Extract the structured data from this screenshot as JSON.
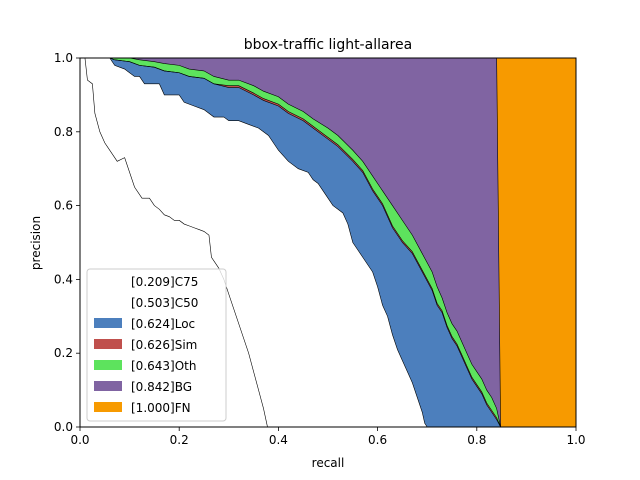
{
  "chart_data": {
    "type": "area",
    "title": "bbox-traffic light-allarea",
    "xlabel": "recall",
    "ylabel": "precision",
    "xlim": [
      0,
      1
    ],
    "ylim": [
      0,
      1
    ],
    "xticks": [
      "0.0",
      "0.2",
      "0.4",
      "0.6",
      "0.8",
      "1.0"
    ],
    "yticks": [
      "0.0",
      "0.2",
      "0.4",
      "0.6",
      "0.8",
      "1.0"
    ],
    "grid": false,
    "legend_position": "lower-left",
    "series": [
      {
        "name": "[0.209]C75",
        "color": "#ffffff",
        "points": [
          [
            0,
            1
          ],
          [
            0.01,
            1
          ],
          [
            0.015,
            0.94
          ],
          [
            0.025,
            0.93
          ],
          [
            0.03,
            0.85
          ],
          [
            0.04,
            0.8
          ],
          [
            0.05,
            0.77
          ],
          [
            0.055,
            0.76
          ],
          [
            0.065,
            0.74
          ],
          [
            0.075,
            0.72
          ],
          [
            0.09,
            0.73
          ],
          [
            0.1,
            0.69
          ],
          [
            0.11,
            0.65
          ],
          [
            0.125,
            0.62
          ],
          [
            0.14,
            0.62
          ],
          [
            0.15,
            0.6
          ],
          [
            0.16,
            0.59
          ],
          [
            0.17,
            0.575
          ],
          [
            0.18,
            0.57
          ],
          [
            0.19,
            0.56
          ],
          [
            0.2,
            0.56
          ],
          [
            0.21,
            0.55
          ],
          [
            0.22,
            0.545
          ],
          [
            0.23,
            0.54
          ],
          [
            0.24,
            0.535
          ],
          [
            0.25,
            0.53
          ],
          [
            0.26,
            0.52
          ],
          [
            0.265,
            0.46
          ],
          [
            0.27,
            0.45
          ],
          [
            0.28,
            0.43
          ],
          [
            0.29,
            0.4
          ],
          [
            0.3,
            0.36
          ],
          [
            0.31,
            0.32
          ],
          [
            0.32,
            0.28
          ],
          [
            0.33,
            0.24
          ],
          [
            0.34,
            0.2
          ],
          [
            0.35,
            0.15
          ],
          [
            0.36,
            0.1
          ],
          [
            0.37,
            0.05
          ],
          [
            0.378,
            0
          ]
        ]
      },
      {
        "name": "[0.503]C50",
        "color": "#ffffff",
        "points": [
          [
            0,
            1
          ],
          [
            0.02,
            1
          ],
          [
            0.06,
            1
          ],
          [
            0.07,
            0.98
          ],
          [
            0.09,
            0.97
          ],
          [
            0.11,
            0.95
          ],
          [
            0.12,
            0.95
          ],
          [
            0.13,
            0.93
          ],
          [
            0.16,
            0.93
          ],
          [
            0.17,
            0.9
          ],
          [
            0.2,
            0.9
          ],
          [
            0.21,
            0.88
          ],
          [
            0.23,
            0.87
          ],
          [
            0.25,
            0.86
          ],
          [
            0.27,
            0.84
          ],
          [
            0.29,
            0.84
          ],
          [
            0.3,
            0.83
          ],
          [
            0.32,
            0.83
          ],
          [
            0.34,
            0.82
          ],
          [
            0.36,
            0.81
          ],
          [
            0.38,
            0.79
          ],
          [
            0.4,
            0.75
          ],
          [
            0.42,
            0.72
          ],
          [
            0.44,
            0.7
          ],
          [
            0.46,
            0.69
          ],
          [
            0.47,
            0.67
          ],
          [
            0.48,
            0.66
          ],
          [
            0.49,
            0.64
          ],
          [
            0.5,
            0.62
          ],
          [
            0.51,
            0.6
          ],
          [
            0.52,
            0.59
          ],
          [
            0.53,
            0.58
          ],
          [
            0.54,
            0.55
          ],
          [
            0.55,
            0.5
          ],
          [
            0.56,
            0.48
          ],
          [
            0.57,
            0.46
          ],
          [
            0.58,
            0.44
          ],
          [
            0.59,
            0.42
          ],
          [
            0.6,
            0.38
          ],
          [
            0.61,
            0.33
          ],
          [
            0.62,
            0.3
          ],
          [
            0.63,
            0.25
          ],
          [
            0.64,
            0.21
          ],
          [
            0.65,
            0.18
          ],
          [
            0.66,
            0.15
          ],
          [
            0.67,
            0.12
          ],
          [
            0.68,
            0.08
          ],
          [
            0.69,
            0.04
          ],
          [
            0.695,
            0.01
          ],
          [
            0.7,
            0
          ]
        ]
      },
      {
        "name": "[0.624]Loc",
        "color": "#4c7fbd",
        "points": [
          [
            0,
            1
          ],
          [
            0.06,
            1
          ],
          [
            0.07,
            0.995
          ],
          [
            0.1,
            0.99
          ],
          [
            0.12,
            0.98
          ],
          [
            0.15,
            0.975
          ],
          [
            0.17,
            0.965
          ],
          [
            0.2,
            0.96
          ],
          [
            0.22,
            0.95
          ],
          [
            0.25,
            0.945
          ],
          [
            0.27,
            0.93
          ],
          [
            0.3,
            0.92
          ],
          [
            0.32,
            0.92
          ],
          [
            0.35,
            0.9
          ],
          [
            0.37,
            0.885
          ],
          [
            0.4,
            0.87
          ],
          [
            0.42,
            0.85
          ],
          [
            0.45,
            0.83
          ],
          [
            0.47,
            0.81
          ],
          [
            0.5,
            0.78
          ],
          [
            0.52,
            0.76
          ],
          [
            0.55,
            0.72
          ],
          [
            0.57,
            0.69
          ],
          [
            0.59,
            0.64
          ],
          [
            0.61,
            0.6
          ],
          [
            0.63,
            0.54
          ],
          [
            0.65,
            0.5
          ],
          [
            0.67,
            0.47
          ],
          [
            0.69,
            0.42
          ],
          [
            0.71,
            0.37
          ],
          [
            0.72,
            0.33
          ],
          [
            0.73,
            0.31
          ],
          [
            0.74,
            0.27
          ],
          [
            0.75,
            0.24
          ],
          [
            0.76,
            0.22
          ],
          [
            0.77,
            0.19
          ],
          [
            0.78,
            0.16
          ],
          [
            0.79,
            0.13
          ],
          [
            0.8,
            0.11
          ],
          [
            0.81,
            0.09
          ],
          [
            0.82,
            0.06
          ],
          [
            0.83,
            0.04
          ],
          [
            0.84,
            0.02
          ],
          [
            0.848,
            0
          ]
        ]
      },
      {
        "name": "[0.626]Sim",
        "color": "#c0504d",
        "points": [
          [
            0,
            1
          ],
          [
            0.06,
            1
          ],
          [
            0.07,
            0.995
          ],
          [
            0.1,
            0.99
          ],
          [
            0.12,
            0.98
          ],
          [
            0.15,
            0.975
          ],
          [
            0.17,
            0.965
          ],
          [
            0.2,
            0.96
          ],
          [
            0.22,
            0.95
          ],
          [
            0.25,
            0.945
          ],
          [
            0.27,
            0.93
          ],
          [
            0.3,
            0.925
          ],
          [
            0.32,
            0.925
          ],
          [
            0.35,
            0.905
          ],
          [
            0.37,
            0.89
          ],
          [
            0.4,
            0.875
          ],
          [
            0.42,
            0.855
          ],
          [
            0.45,
            0.835
          ],
          [
            0.47,
            0.815
          ],
          [
            0.5,
            0.785
          ],
          [
            0.52,
            0.765
          ],
          [
            0.55,
            0.725
          ],
          [
            0.57,
            0.695
          ],
          [
            0.59,
            0.645
          ],
          [
            0.61,
            0.605
          ],
          [
            0.63,
            0.545
          ],
          [
            0.65,
            0.505
          ],
          [
            0.67,
            0.475
          ],
          [
            0.69,
            0.425
          ],
          [
            0.71,
            0.375
          ],
          [
            0.72,
            0.335
          ],
          [
            0.73,
            0.315
          ],
          [
            0.74,
            0.275
          ],
          [
            0.75,
            0.245
          ],
          [
            0.76,
            0.225
          ],
          [
            0.77,
            0.195
          ],
          [
            0.78,
            0.165
          ],
          [
            0.79,
            0.135
          ],
          [
            0.8,
            0.115
          ],
          [
            0.81,
            0.095
          ],
          [
            0.82,
            0.065
          ],
          [
            0.83,
            0.045
          ],
          [
            0.84,
            0.025
          ],
          [
            0.848,
            0
          ]
        ]
      },
      {
        "name": "[0.643]Oth",
        "color": "#5de35d",
        "points": [
          [
            0,
            1
          ],
          [
            0.06,
            1
          ],
          [
            0.1,
            1
          ],
          [
            0.12,
            0.995
          ],
          [
            0.15,
            0.99
          ],
          [
            0.17,
            0.985
          ],
          [
            0.2,
            0.98
          ],
          [
            0.22,
            0.97
          ],
          [
            0.25,
            0.965
          ],
          [
            0.27,
            0.95
          ],
          [
            0.3,
            0.94
          ],
          [
            0.32,
            0.94
          ],
          [
            0.35,
            0.925
          ],
          [
            0.37,
            0.91
          ],
          [
            0.4,
            0.895
          ],
          [
            0.42,
            0.875
          ],
          [
            0.45,
            0.855
          ],
          [
            0.47,
            0.835
          ],
          [
            0.5,
            0.81
          ],
          [
            0.52,
            0.79
          ],
          [
            0.55,
            0.75
          ],
          [
            0.57,
            0.72
          ],
          [
            0.59,
            0.68
          ],
          [
            0.61,
            0.64
          ],
          [
            0.63,
            0.6
          ],
          [
            0.65,
            0.56
          ],
          [
            0.67,
            0.52
          ],
          [
            0.69,
            0.47
          ],
          [
            0.71,
            0.42
          ],
          [
            0.72,
            0.38
          ],
          [
            0.73,
            0.35
          ],
          [
            0.74,
            0.31
          ],
          [
            0.75,
            0.28
          ],
          [
            0.76,
            0.26
          ],
          [
            0.77,
            0.23
          ],
          [
            0.78,
            0.2
          ],
          [
            0.79,
            0.17
          ],
          [
            0.8,
            0.15
          ],
          [
            0.81,
            0.13
          ],
          [
            0.82,
            0.1
          ],
          [
            0.83,
            0.08
          ],
          [
            0.84,
            0.05
          ],
          [
            0.848,
            0
          ]
        ]
      },
      {
        "name": "[0.842]BG",
        "color": "#8064a2",
        "points": [
          [
            0,
            1
          ],
          [
            0.84,
            1
          ],
          [
            0.848,
            0
          ]
        ]
      },
      {
        "name": "[1.000]FN",
        "color": "#f79a00",
        "points": [
          [
            0,
            1
          ],
          [
            1,
            1
          ],
          [
            1,
            0
          ]
        ]
      }
    ]
  }
}
